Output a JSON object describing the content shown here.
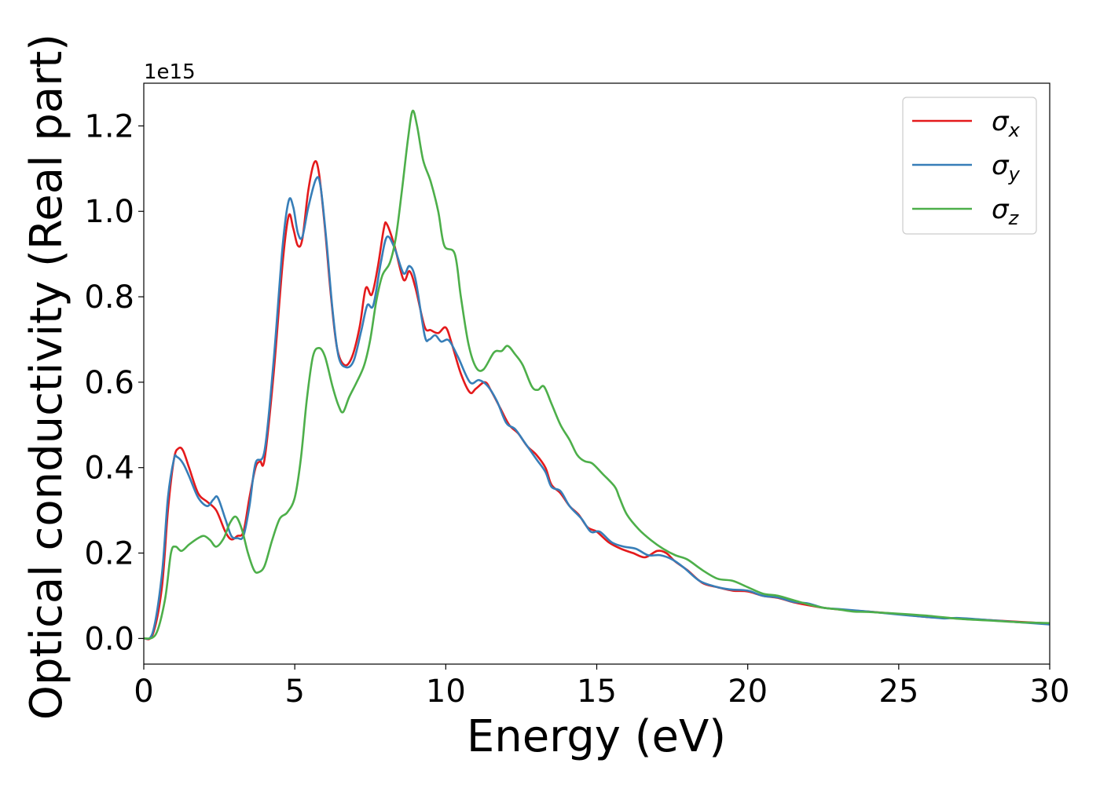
{
  "chart_data": {
    "type": "line",
    "xlabel": "Energy (eV)",
    "ylabel": "Optical conductivity (Real part)",
    "y_offset_text": "1e15",
    "xlim": [
      0,
      30
    ],
    "ylim": [
      -0.06,
      1.3
    ],
    "xticks": [
      0,
      5,
      10,
      15,
      20,
      25,
      30
    ],
    "xtick_labels": [
      "0",
      "5",
      "10",
      "15",
      "20",
      "25",
      "30"
    ],
    "yticks": [
      0.0,
      0.2,
      0.4,
      0.6,
      0.8,
      1.0,
      1.2
    ],
    "ytick_labels": [
      "0.0",
      "0.2",
      "0.4",
      "0.6",
      "0.8",
      "1.0",
      "1.2"
    ],
    "grid": false,
    "legend_position": "top-right",
    "series": [
      {
        "name": "σx",
        "symbol": "σ",
        "subscript": "x",
        "color": "#e41a1c",
        "points": [
          [
            0,
            0.0
          ],
          [
            0.3,
            0.01
          ],
          [
            0.6,
            0.12
          ],
          [
            0.8,
            0.3
          ],
          [
            1.0,
            0.42
          ],
          [
            1.15,
            0.445
          ],
          [
            1.3,
            0.44
          ],
          [
            1.5,
            0.4
          ],
          [
            1.8,
            0.34
          ],
          [
            2.1,
            0.32
          ],
          [
            2.4,
            0.3
          ],
          [
            2.7,
            0.25
          ],
          [
            2.9,
            0.232
          ],
          [
            3.1,
            0.24
          ],
          [
            3.3,
            0.25
          ],
          [
            3.5,
            0.33
          ],
          [
            3.7,
            0.4
          ],
          [
            3.85,
            0.415
          ],
          [
            4.0,
            0.42
          ],
          [
            4.3,
            0.62
          ],
          [
            4.6,
            0.88
          ],
          [
            4.8,
            0.99
          ],
          [
            4.95,
            0.96
          ],
          [
            5.1,
            0.92
          ],
          [
            5.25,
            0.935
          ],
          [
            5.45,
            1.05
          ],
          [
            5.65,
            1.115
          ],
          [
            5.8,
            1.09
          ],
          [
            6.0,
            0.96
          ],
          [
            6.2,
            0.8
          ],
          [
            6.4,
            0.68
          ],
          [
            6.65,
            0.64
          ],
          [
            6.9,
            0.66
          ],
          [
            7.15,
            0.73
          ],
          [
            7.35,
            0.82
          ],
          [
            7.55,
            0.805
          ],
          [
            7.75,
            0.87
          ],
          [
            7.95,
            0.96
          ],
          [
            8.05,
            0.97
          ],
          [
            8.3,
            0.92
          ],
          [
            8.6,
            0.84
          ],
          [
            8.8,
            0.86
          ],
          [
            9.0,
            0.82
          ],
          [
            9.3,
            0.73
          ],
          [
            9.5,
            0.722
          ],
          [
            9.75,
            0.715
          ],
          [
            10.0,
            0.728
          ],
          [
            10.2,
            0.69
          ],
          [
            10.5,
            0.62
          ],
          [
            10.8,
            0.576
          ],
          [
            11.0,
            0.585
          ],
          [
            11.3,
            0.6
          ],
          [
            11.5,
            0.58
          ],
          [
            11.8,
            0.54
          ],
          [
            12.1,
            0.5
          ],
          [
            12.4,
            0.48
          ],
          [
            12.7,
            0.45
          ],
          [
            13.0,
            0.43
          ],
          [
            13.3,
            0.4
          ],
          [
            13.5,
            0.36
          ],
          [
            13.8,
            0.34
          ],
          [
            14.1,
            0.31
          ],
          [
            14.4,
            0.29
          ],
          [
            14.7,
            0.26
          ],
          [
            15.0,
            0.25
          ],
          [
            15.4,
            0.225
          ],
          [
            15.8,
            0.21
          ],
          [
            16.2,
            0.2
          ],
          [
            16.6,
            0.19
          ],
          [
            17.0,
            0.205
          ],
          [
            17.3,
            0.2
          ],
          [
            17.6,
            0.18
          ],
          [
            18.0,
            0.16
          ],
          [
            18.5,
            0.13
          ],
          [
            19.0,
            0.12
          ],
          [
            19.5,
            0.112
          ],
          [
            20.0,
            0.11
          ],
          [
            20.5,
            0.1
          ],
          [
            21.0,
            0.095
          ],
          [
            21.5,
            0.085
          ],
          [
            22.0,
            0.078
          ],
          [
            22.5,
            0.072
          ],
          [
            23.0,
            0.068
          ],
          [
            24.0,
            0.063
          ],
          [
            25.0,
            0.057
          ],
          [
            26.0,
            0.05
          ],
          [
            27.0,
            0.047
          ],
          [
            28.0,
            0.043
          ],
          [
            29.0,
            0.039
          ],
          [
            30.0,
            0.035
          ]
        ]
      },
      {
        "name": "σy",
        "symbol": "σ",
        "subscript": "y",
        "color": "#377eb8",
        "points": [
          [
            0,
            0.0
          ],
          [
            0.3,
            0.015
          ],
          [
            0.6,
            0.15
          ],
          [
            0.8,
            0.33
          ],
          [
            1.0,
            0.42
          ],
          [
            1.1,
            0.425
          ],
          [
            1.3,
            0.41
          ],
          [
            1.5,
            0.38
          ],
          [
            1.8,
            0.33
          ],
          [
            2.1,
            0.31
          ],
          [
            2.3,
            0.325
          ],
          [
            2.45,
            0.33
          ],
          [
            2.7,
            0.28
          ],
          [
            2.9,
            0.24
          ],
          [
            3.1,
            0.235
          ],
          [
            3.3,
            0.24
          ],
          [
            3.5,
            0.31
          ],
          [
            3.7,
            0.41
          ],
          [
            4.0,
            0.44
          ],
          [
            4.3,
            0.65
          ],
          [
            4.6,
            0.92
          ],
          [
            4.8,
            1.025
          ],
          [
            4.95,
            1.01
          ],
          [
            5.1,
            0.95
          ],
          [
            5.25,
            0.94
          ],
          [
            5.45,
            1.01
          ],
          [
            5.7,
            1.075
          ],
          [
            5.85,
            1.06
          ],
          [
            6.05,
            0.93
          ],
          [
            6.25,
            0.77
          ],
          [
            6.45,
            0.66
          ],
          [
            6.7,
            0.635
          ],
          [
            6.95,
            0.65
          ],
          [
            7.2,
            0.72
          ],
          [
            7.4,
            0.78
          ],
          [
            7.6,
            0.78
          ],
          [
            7.85,
            0.88
          ],
          [
            8.05,
            0.94
          ],
          [
            8.3,
            0.915
          ],
          [
            8.6,
            0.855
          ],
          [
            8.8,
            0.872
          ],
          [
            9.0,
            0.84
          ],
          [
            9.3,
            0.71
          ],
          [
            9.45,
            0.7
          ],
          [
            9.65,
            0.71
          ],
          [
            9.85,
            0.695
          ],
          [
            10.1,
            0.698
          ],
          [
            10.4,
            0.66
          ],
          [
            10.8,
            0.6
          ],
          [
            11.1,
            0.605
          ],
          [
            11.4,
            0.59
          ],
          [
            11.7,
            0.555
          ],
          [
            12.0,
            0.505
          ],
          [
            12.3,
            0.49
          ],
          [
            12.6,
            0.46
          ],
          [
            13.0,
            0.42
          ],
          [
            13.3,
            0.39
          ],
          [
            13.5,
            0.355
          ],
          [
            13.8,
            0.345
          ],
          [
            14.1,
            0.31
          ],
          [
            14.5,
            0.28
          ],
          [
            14.8,
            0.25
          ],
          [
            15.1,
            0.25
          ],
          [
            15.5,
            0.225
          ],
          [
            15.9,
            0.215
          ],
          [
            16.3,
            0.21
          ],
          [
            16.7,
            0.195
          ],
          [
            17.1,
            0.195
          ],
          [
            17.5,
            0.185
          ],
          [
            17.9,
            0.165
          ],
          [
            18.4,
            0.135
          ],
          [
            18.9,
            0.122
          ],
          [
            19.4,
            0.115
          ],
          [
            20.0,
            0.112
          ],
          [
            20.5,
            0.1
          ],
          [
            21.0,
            0.096
          ],
          [
            21.5,
            0.086
          ],
          [
            22.0,
            0.082
          ],
          [
            22.5,
            0.072
          ],
          [
            23.0,
            0.069
          ],
          [
            24.0,
            0.063
          ],
          [
            25.0,
            0.056
          ],
          [
            26.0,
            0.05
          ],
          [
            26.5,
            0.047
          ],
          [
            27.0,
            0.048
          ],
          [
            28.0,
            0.043
          ],
          [
            29.0,
            0.038
          ],
          [
            30.0,
            0.033
          ]
        ]
      },
      {
        "name": "σz",
        "symbol": "σ",
        "subscript": "z",
        "color": "#4daf4a",
        "points": [
          [
            0,
            0.0
          ],
          [
            0.4,
            0.01
          ],
          [
            0.7,
            0.09
          ],
          [
            0.9,
            0.2
          ],
          [
            1.05,
            0.215
          ],
          [
            1.25,
            0.205
          ],
          [
            1.5,
            0.22
          ],
          [
            1.8,
            0.235
          ],
          [
            2.0,
            0.24
          ],
          [
            2.2,
            0.23
          ],
          [
            2.4,
            0.215
          ],
          [
            2.65,
            0.235
          ],
          [
            2.85,
            0.27
          ],
          [
            3.05,
            0.285
          ],
          [
            3.25,
            0.255
          ],
          [
            3.45,
            0.2
          ],
          [
            3.65,
            0.16
          ],
          [
            3.8,
            0.155
          ],
          [
            4.0,
            0.17
          ],
          [
            4.25,
            0.23
          ],
          [
            4.5,
            0.28
          ],
          [
            4.75,
            0.295
          ],
          [
            5.0,
            0.33
          ],
          [
            5.2,
            0.42
          ],
          [
            5.4,
            0.56
          ],
          [
            5.6,
            0.66
          ],
          [
            5.8,
            0.68
          ],
          [
            6.0,
            0.66
          ],
          [
            6.25,
            0.59
          ],
          [
            6.45,
            0.545
          ],
          [
            6.6,
            0.53
          ],
          [
            6.8,
            0.565
          ],
          [
            7.05,
            0.6
          ],
          [
            7.3,
            0.64
          ],
          [
            7.5,
            0.7
          ],
          [
            7.7,
            0.79
          ],
          [
            7.9,
            0.85
          ],
          [
            8.15,
            0.88
          ],
          [
            8.35,
            0.94
          ],
          [
            8.55,
            1.05
          ],
          [
            8.75,
            1.17
          ],
          [
            8.9,
            1.235
          ],
          [
            9.05,
            1.2
          ],
          [
            9.25,
            1.12
          ],
          [
            9.5,
            1.07
          ],
          [
            9.75,
            1.0
          ],
          [
            9.95,
            0.92
          ],
          [
            10.3,
            0.9
          ],
          [
            10.5,
            0.8
          ],
          [
            10.75,
            0.69
          ],
          [
            11.0,
            0.635
          ],
          [
            11.25,
            0.63
          ],
          [
            11.6,
            0.67
          ],
          [
            11.85,
            0.673
          ],
          [
            12.05,
            0.685
          ],
          [
            12.3,
            0.665
          ],
          [
            12.55,
            0.64
          ],
          [
            12.85,
            0.59
          ],
          [
            13.05,
            0.582
          ],
          [
            13.25,
            0.59
          ],
          [
            13.5,
            0.55
          ],
          [
            13.8,
            0.5
          ],
          [
            14.1,
            0.465
          ],
          [
            14.35,
            0.43
          ],
          [
            14.6,
            0.415
          ],
          [
            14.85,
            0.41
          ],
          [
            15.2,
            0.385
          ],
          [
            15.6,
            0.355
          ],
          [
            15.75,
            0.33
          ],
          [
            16.0,
            0.29
          ],
          [
            16.4,
            0.255
          ],
          [
            16.8,
            0.23
          ],
          [
            17.2,
            0.21
          ],
          [
            17.6,
            0.195
          ],
          [
            18.0,
            0.185
          ],
          [
            18.5,
            0.16
          ],
          [
            19.0,
            0.14
          ],
          [
            19.5,
            0.135
          ],
          [
            20.0,
            0.12
          ],
          [
            20.5,
            0.105
          ],
          [
            21.0,
            0.1
          ],
          [
            21.5,
            0.09
          ],
          [
            22.0,
            0.08
          ],
          [
            22.5,
            0.072
          ],
          [
            23.0,
            0.068
          ],
          [
            23.5,
            0.063
          ],
          [
            24.0,
            0.062
          ],
          [
            25.0,
            0.058
          ],
          [
            26.0,
            0.053
          ],
          [
            27.0,
            0.046
          ],
          [
            28.0,
            0.042
          ],
          [
            29.0,
            0.038
          ],
          [
            30.0,
            0.036
          ]
        ]
      }
    ]
  }
}
